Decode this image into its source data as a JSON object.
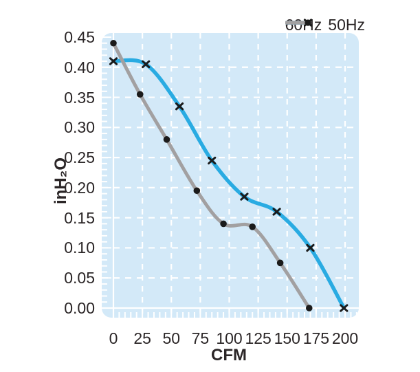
{
  "chart_data": {
    "type": "line",
    "title": "",
    "xlabel": "CFM",
    "ylabel": "inH₂O",
    "xlim": [
      0,
      200
    ],
    "ylim": [
      0,
      0.45
    ],
    "xticks": [
      0,
      25,
      50,
      75,
      100,
      125,
      150,
      175,
      200
    ],
    "xtick_labels": [
      "0",
      "25",
      "50",
      "75",
      "100",
      "125",
      "150",
      "175",
      "200"
    ],
    "yticks": [
      0,
      0.05,
      0.1,
      0.15,
      0.2,
      0.25,
      0.3,
      0.35,
      0.4,
      0.45
    ],
    "ytick_labels": [
      "0.00",
      "0.05",
      "0.10",
      "0.15",
      "0.20",
      "0.25",
      "0.30",
      "0.35",
      "0.40",
      "0.45"
    ],
    "grid": {
      "on": true,
      "color": "#ffffff",
      "style": "dashed"
    },
    "legend_position": "top-right",
    "series": [
      {
        "name": "60Hz",
        "color": "#29abe2",
        "marker": "x",
        "marker_color": "#1b1b1b",
        "points": [
          [
            0,
            0.41
          ],
          [
            28,
            0.405
          ],
          [
            57,
            0.335
          ],
          [
            85,
            0.245
          ],
          [
            113,
            0.185
          ],
          [
            141,
            0.16
          ],
          [
            170,
            0.1
          ],
          [
            199,
            0.0
          ]
        ]
      },
      {
        "name": "50Hz",
        "color": "#a2a0a1",
        "marker": "dot",
        "marker_color": "#1b1b1b",
        "points": [
          [
            0,
            0.44
          ],
          [
            23,
            0.355
          ],
          [
            46,
            0.28
          ],
          [
            72,
            0.195
          ],
          [
            95,
            0.14
          ],
          [
            120,
            0.135
          ],
          [
            144,
            0.075
          ],
          [
            169,
            0.0
          ]
        ]
      }
    ]
  },
  "colors": {
    "page_bg": "#ffffff",
    "plot_bg": "#d3e9f8",
    "grid": "#ffffff",
    "text": "#2b2627",
    "series_60hz": "#29abe2",
    "series_50hz": "#a2a0a1",
    "marker": "#1b1b1b"
  }
}
